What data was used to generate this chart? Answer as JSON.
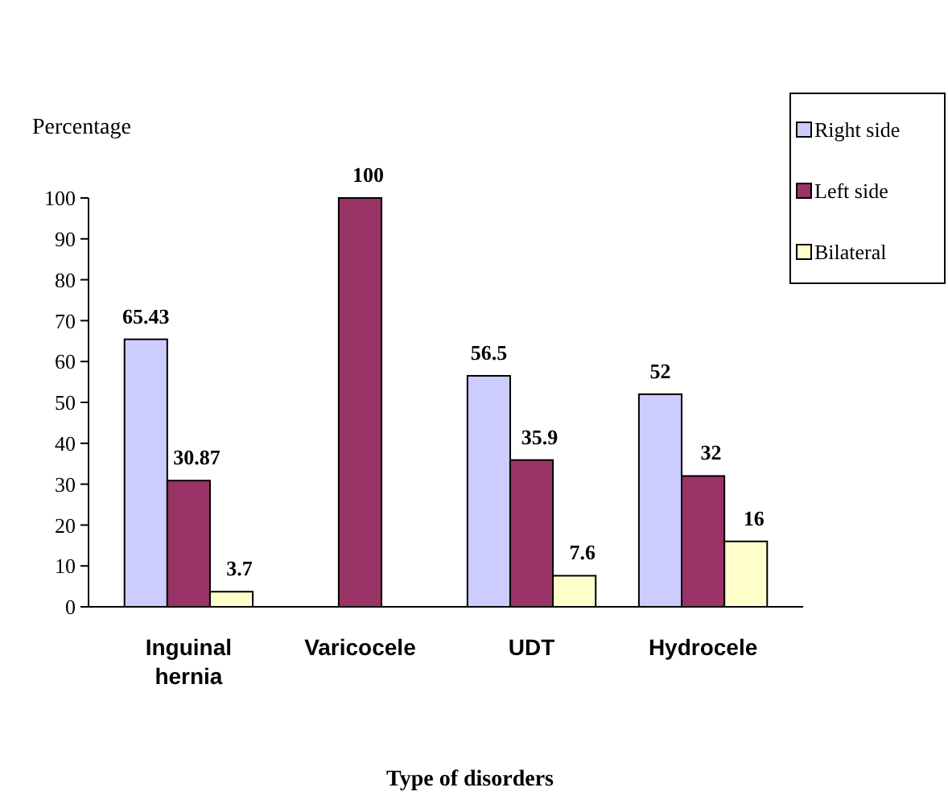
{
  "chart_data": {
    "type": "bar",
    "ylabel": "Percentage",
    "xlabel": "Type of disorders",
    "categories": [
      "Inguinal hernia",
      "Varicocele",
      "UDT",
      "Hydrocele"
    ],
    "series": [
      {
        "name": "Right side",
        "color": "#ccccff",
        "values": [
          65.43,
          null,
          56.5,
          52
        ]
      },
      {
        "name": "Left side",
        "color": "#993366",
        "values": [
          30.87,
          100,
          35.9,
          32
        ]
      },
      {
        "name": "Bilateral",
        "color": "#ffffcc",
        "values": [
          3.7,
          null,
          7.6,
          16
        ]
      }
    ],
    "ylim": [
      0,
      100
    ],
    "yticks": [
      0,
      10,
      20,
      30,
      40,
      50,
      60,
      70,
      80,
      90,
      100
    ],
    "grid": false,
    "legend": "top right",
    "data_labels": true
  }
}
